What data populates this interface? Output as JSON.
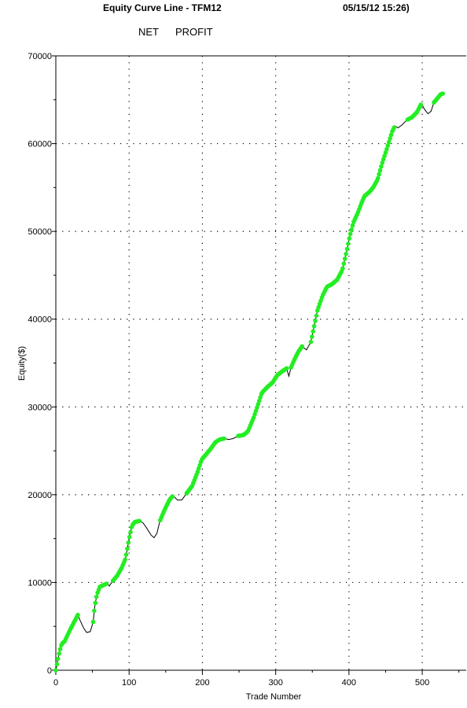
{
  "header": {
    "title": "Equity Curve Line - TFM12",
    "timestamp": "05/15/12 15:26)",
    "subtitle_left": "NET",
    "subtitle_right": "PROFIT"
  },
  "colors": {
    "marker": "#22ee22",
    "line": "#000000",
    "grid": "#000000",
    "background": "#ffffff"
  },
  "chart_data": {
    "type": "line",
    "title": "Equity Curve Line - TFM12",
    "xlabel": "Trade Number",
    "ylabel": "Equity($)",
    "xlim": [
      0,
      560
    ],
    "ylim": [
      0,
      70000
    ],
    "x_ticks": [
      0,
      100,
      200,
      300,
      400,
      500
    ],
    "y_ticks": [
      0,
      10000,
      20000,
      30000,
      40000,
      50000,
      60000,
      70000
    ],
    "grid": true,
    "series": [
      {
        "marker": "green-circle-on-new-equity-high",
        "points": [
          [
            0,
            0
          ],
          [
            2,
            900
          ],
          [
            5,
            2100
          ],
          [
            8,
            3000
          ],
          [
            12,
            3300
          ],
          [
            16,
            4000
          ],
          [
            20,
            4700
          ],
          [
            25,
            5500
          ],
          [
            30,
            6300
          ],
          [
            33,
            5700
          ],
          [
            38,
            4800
          ],
          [
            42,
            4300
          ],
          [
            47,
            4400
          ],
          [
            51,
            5500
          ],
          [
            53,
            7200
          ],
          [
            56,
            8600
          ],
          [
            60,
            9500
          ],
          [
            65,
            9700
          ],
          [
            70,
            9900
          ],
          [
            73,
            9600
          ],
          [
            78,
            10200
          ],
          [
            84,
            10800
          ],
          [
            90,
            11700
          ],
          [
            95,
            12700
          ],
          [
            100,
            15000
          ],
          [
            104,
            16500
          ],
          [
            108,
            16900
          ],
          [
            114,
            17000
          ],
          [
            119,
            16800
          ],
          [
            124,
            16200
          ],
          [
            130,
            15400
          ],
          [
            134,
            15100
          ],
          [
            138,
            15600
          ],
          [
            142,
            17000
          ],
          [
            148,
            18200
          ],
          [
            155,
            19400
          ],
          [
            160,
            19900
          ],
          [
            166,
            19400
          ],
          [
            172,
            19400
          ],
          [
            178,
            20100
          ],
          [
            186,
            21000
          ],
          [
            193,
            22500
          ],
          [
            199,
            24000
          ],
          [
            205,
            24600
          ],
          [
            212,
            25300
          ],
          [
            218,
            26000
          ],
          [
            224,
            26300
          ],
          [
            230,
            26400
          ],
          [
            236,
            26300
          ],
          [
            242,
            26400
          ],
          [
            249,
            26700
          ],
          [
            256,
            26800
          ],
          [
            262,
            27200
          ],
          [
            270,
            28800
          ],
          [
            276,
            30300
          ],
          [
            281,
            31600
          ],
          [
            289,
            32300
          ],
          [
            296,
            32800
          ],
          [
            302,
            33600
          ],
          [
            308,
            34000
          ],
          [
            315,
            34400
          ],
          [
            318,
            33500
          ],
          [
            321,
            34500
          ],
          [
            325,
            35300
          ],
          [
            331,
            36300
          ],
          [
            336,
            36900
          ],
          [
            342,
            36500
          ],
          [
            348,
            37400
          ],
          [
            352,
            39000
          ],
          [
            357,
            41000
          ],
          [
            364,
            42700
          ],
          [
            370,
            43700
          ],
          [
            377,
            44000
          ],
          [
            384,
            44500
          ],
          [
            391,
            45600
          ],
          [
            397,
            47800
          ],
          [
            401,
            49400
          ],
          [
            406,
            51000
          ],
          [
            412,
            52100
          ],
          [
            417,
            53200
          ],
          [
            421,
            54000
          ],
          [
            428,
            54500
          ],
          [
            433,
            55000
          ],
          [
            439,
            55900
          ],
          [
            445,
            57700
          ],
          [
            452,
            59500
          ],
          [
            459,
            61400
          ],
          [
            463,
            62000
          ],
          [
            467,
            61800
          ],
          [
            472,
            62100
          ],
          [
            479,
            62700
          ],
          [
            486,
            63000
          ],
          [
            493,
            63600
          ],
          [
            499,
            64600
          ],
          [
            503,
            63900
          ],
          [
            508,
            63400
          ],
          [
            512,
            63700
          ],
          [
            516,
            64700
          ],
          [
            521,
            65200
          ],
          [
            525,
            65600
          ],
          [
            528,
            65700
          ]
        ],
        "dips": [
          [
            30,
            42,
            51
          ],
          [
            70,
            73,
            78
          ],
          [
            114,
            134,
            142
          ],
          [
            160,
            172,
            178
          ],
          [
            230,
            236,
            249
          ],
          [
            315,
            318,
            321
          ],
          [
            336,
            342,
            348
          ],
          [
            463,
            467,
            479
          ],
          [
            499,
            508,
            516
          ]
        ]
      }
    ]
  }
}
